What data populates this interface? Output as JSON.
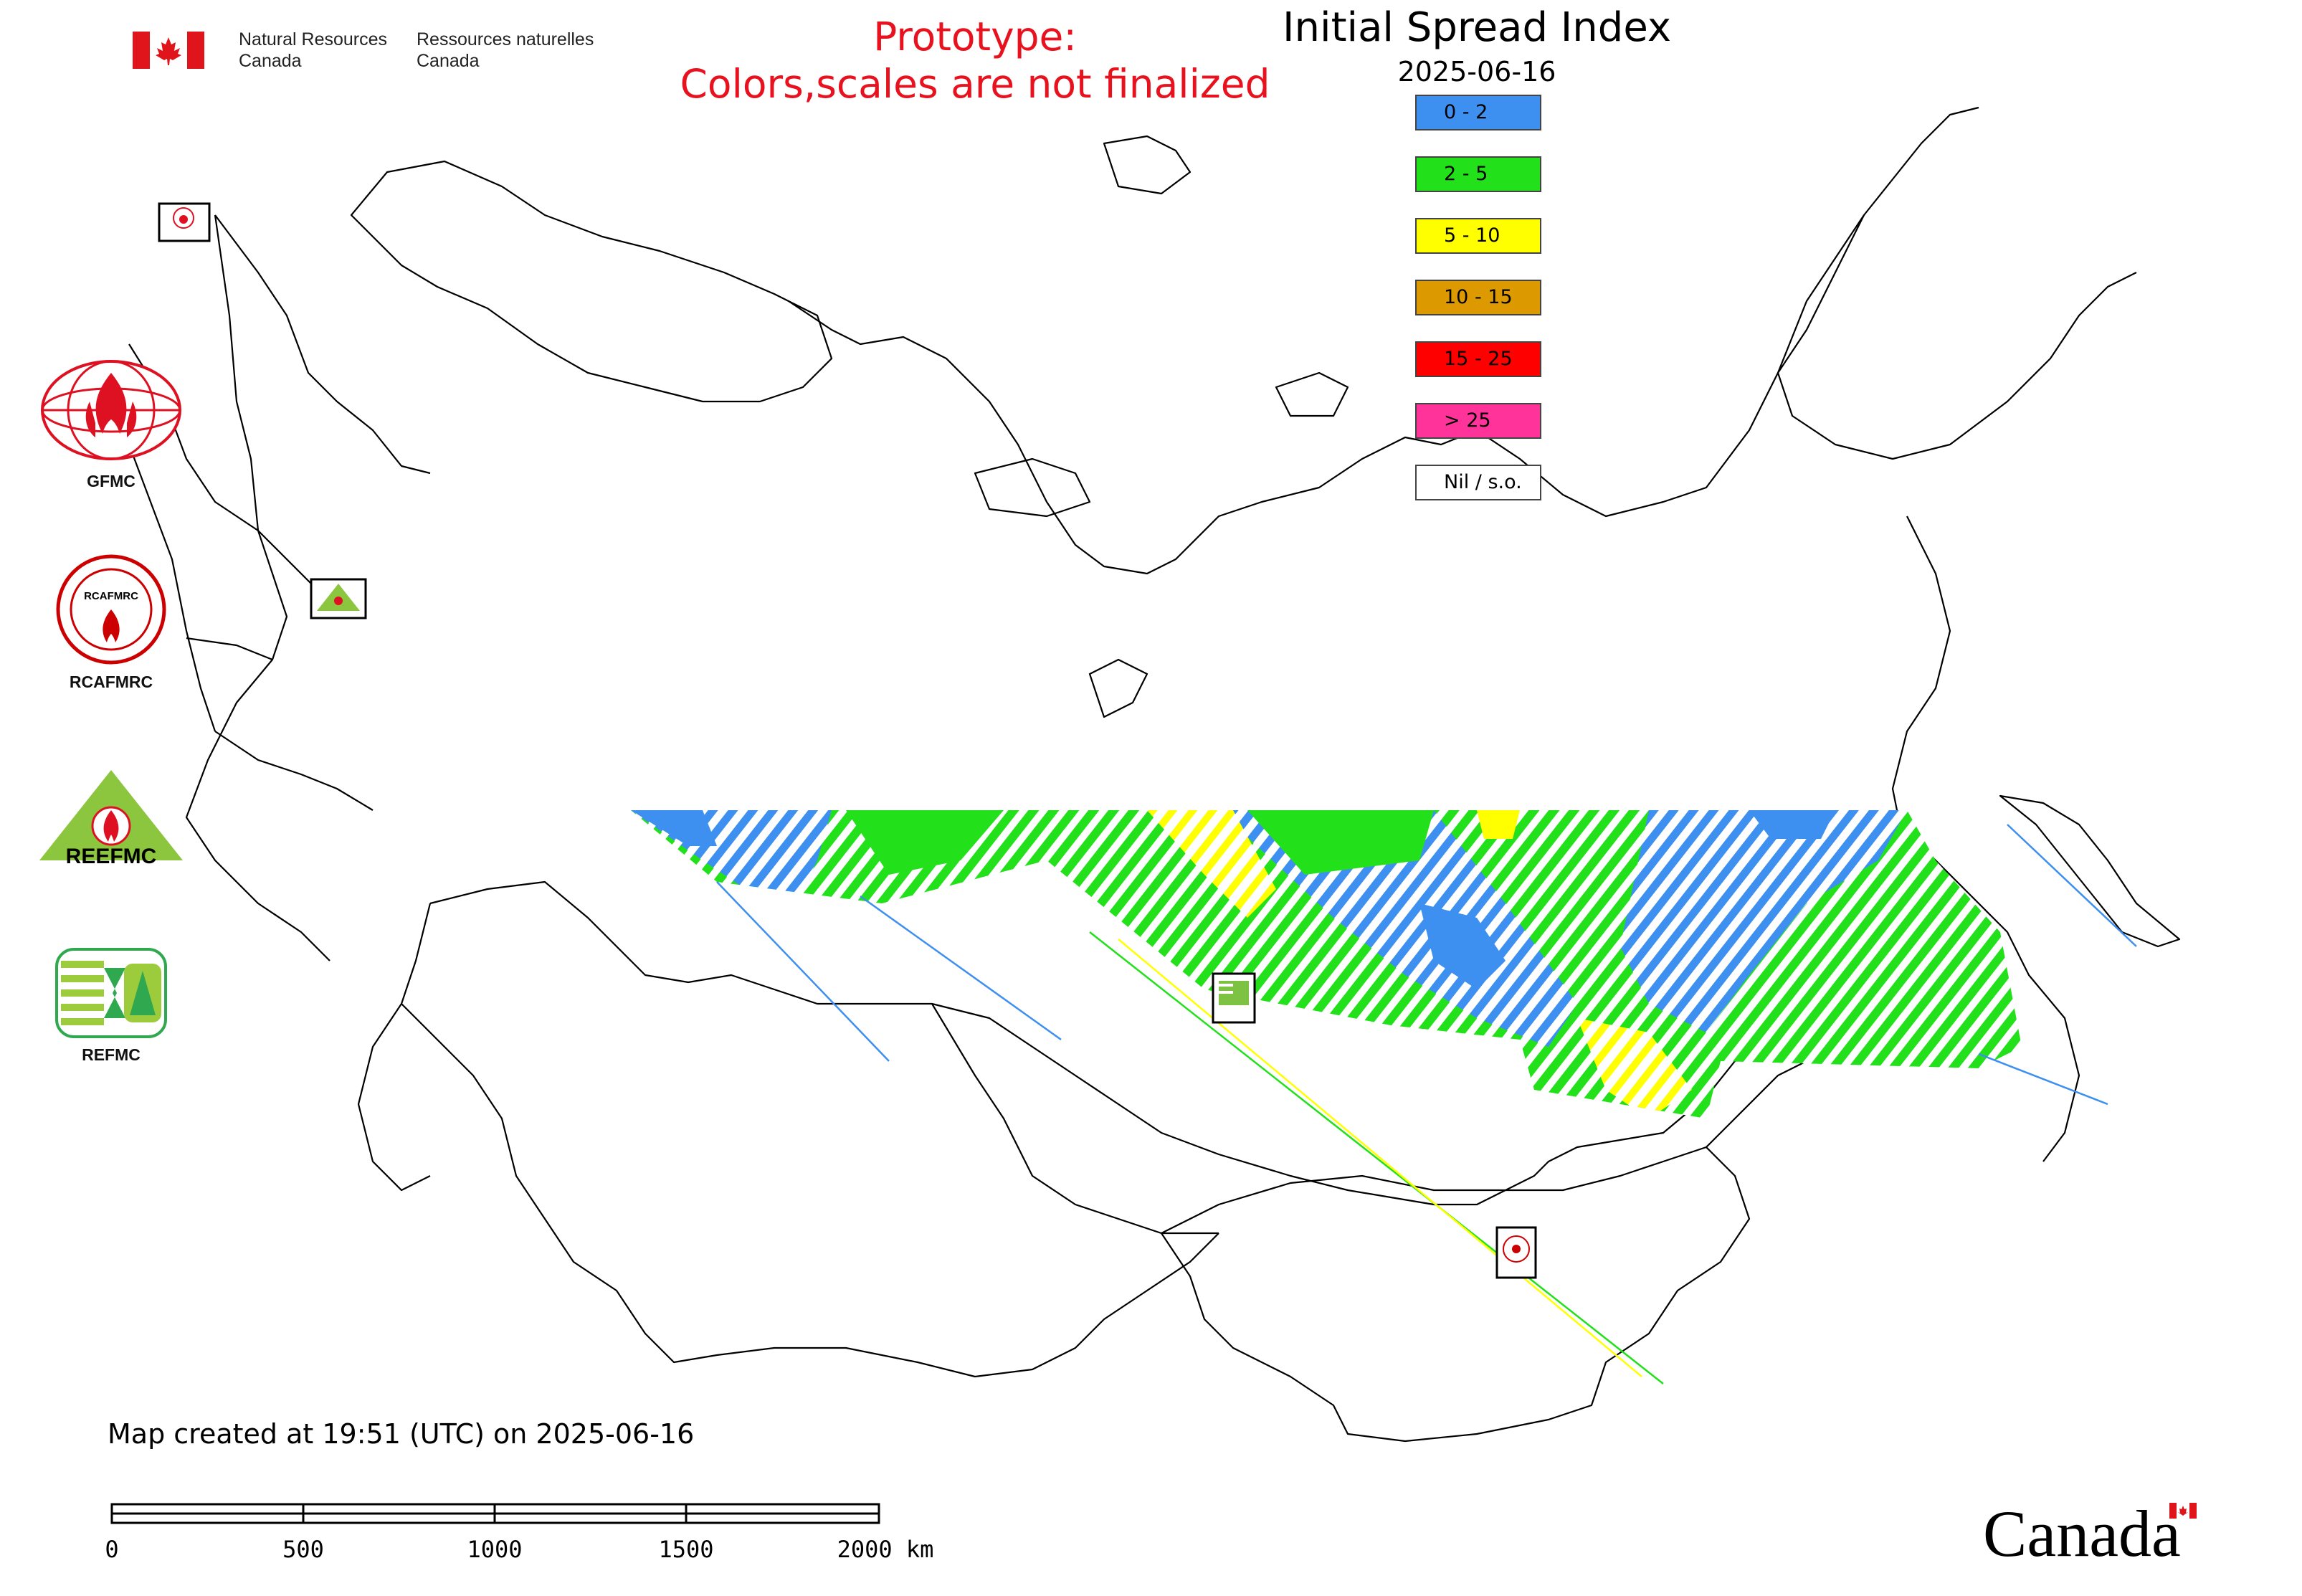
{
  "header": {
    "org_en_line1": "Natural Resources",
    "org_en_line2": "Canada",
    "org_fr_line1": "Ressources naturelles",
    "org_fr_line2": "Canada",
    "prototype_line1": "Prototype:",
    "prototype_line2": "Colors,scales are not finalized",
    "title": "Initial Spread Index",
    "date": "2025-06-16"
  },
  "legend": {
    "items": [
      {
        "label": "0 - 2",
        "color": "#3d8ff0"
      },
      {
        "label": "2 - 5",
        "color": "#22e11b"
      },
      {
        "label": "5 - 10",
        "color": "#ffff00"
      },
      {
        "label": "10 - 15",
        "color": "#dd9900"
      },
      {
        "label": "15 - 25",
        "color": "#ff0000"
      },
      {
        "label": "> 25",
        "color": "#ff3399"
      },
      {
        "label": "Nil / s.o.",
        "color": "#ffffff"
      }
    ]
  },
  "logos": {
    "gfmc_label": "GFMC",
    "rcafmrc_label": "RCAFMRC",
    "reefmc_label": "REEFMC",
    "refmc_label": "REFMC",
    "rcafmrc_badge": "RCAFMRC",
    "reefmc_badge": "REEFMC"
  },
  "footer": {
    "created": "Map created at 19:51 (UTC) on 2025-06-16",
    "scale_ticks": [
      "0",
      "500",
      "1000",
      "1500",
      "2000 km"
    ],
    "canada_wordmark": "Canada"
  },
  "map": {
    "outline_color": "#000000",
    "data_colors": {
      "blue": "#3d8ff0",
      "green": "#22e11b",
      "yellow": "#ffff00"
    }
  }
}
